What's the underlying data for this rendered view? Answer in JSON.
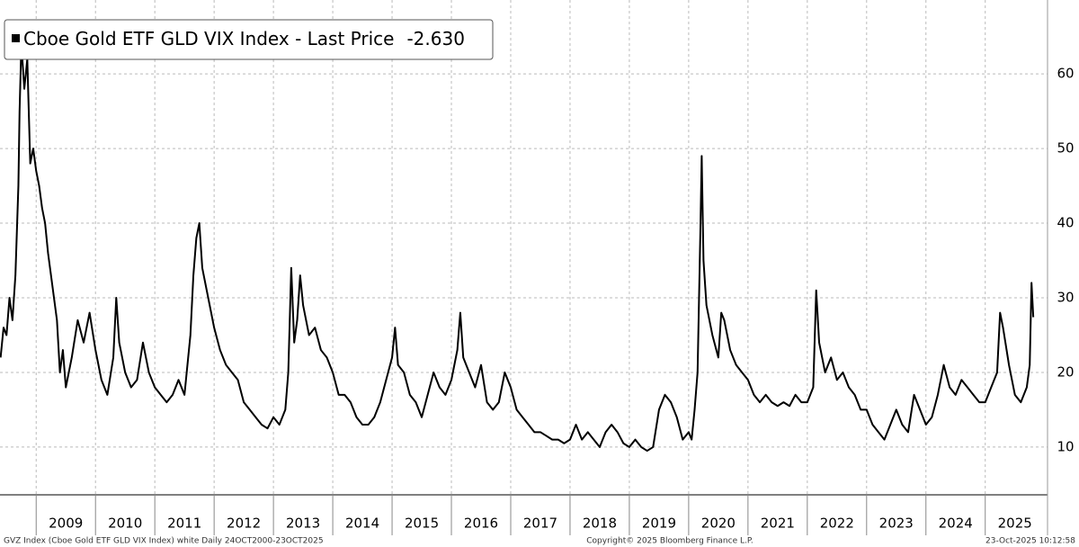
{
  "chart_data": {
    "type": "line",
    "legend": {
      "name_prefix_square": true
    },
    "last_change": {
      "value": -2.63,
      "label": "-2.630"
    },
    "footer": {
      "left": "GVZ Index (Cboe Gold ETF GLD VIX Index) white Daily 24OCT2000-23OCT2025",
      "center": "Copyright© 2025 Bloomberg Finance L.P.",
      "right": "23-Oct-2025 10:12:58"
    },
    "xlim": [
      2008.39,
      2026.05
    ],
    "xticks": [
      2009,
      2010,
      2011,
      2012,
      2013,
      2014,
      2015,
      2016,
      2017,
      2018,
      2019,
      2020,
      2021,
      2022,
      2023,
      2024,
      2025
    ],
    "ylim": [
      3.6,
      69.9
    ],
    "yticks": [
      10,
      20,
      30,
      40,
      50,
      60
    ],
    "grid": true,
    "x": [
      2008.4,
      2008.45,
      2008.5,
      2008.55,
      2008.6,
      2008.65,
      2008.7,
      2008.72,
      2008.75,
      2008.8,
      2008.85,
      2008.9,
      2008.95,
      2009.0,
      2009.05,
      2009.1,
      2009.15,
      2009.2,
      2009.25,
      2009.3,
      2009.35,
      2009.4,
      2009.45,
      2009.5,
      2009.6,
      2009.7,
      2009.8,
      2009.9,
      2010.0,
      2010.1,
      2010.2,
      2010.3,
      2010.35,
      2010.4,
      2010.5,
      2010.6,
      2010.7,
      2010.8,
      2010.9,
      2011.0,
      2011.1,
      2011.2,
      2011.3,
      2011.4,
      2011.5,
      2011.6,
      2011.65,
      2011.7,
      2011.75,
      2011.8,
      2011.9,
      2012.0,
      2012.1,
      2012.2,
      2012.3,
      2012.4,
      2012.5,
      2012.6,
      2012.7,
      2012.8,
      2012.9,
      2013.0,
      2013.1,
      2013.2,
      2013.25,
      2013.3,
      2013.35,
      2013.4,
      2013.45,
      2013.5,
      2013.6,
      2013.7,
      2013.8,
      2013.9,
      2014.0,
      2014.1,
      2014.2,
      2014.3,
      2014.4,
      2014.5,
      2014.6,
      2014.7,
      2014.8,
      2014.9,
      2015.0,
      2015.05,
      2015.1,
      2015.2,
      2015.3,
      2015.4,
      2015.5,
      2015.6,
      2015.7,
      2015.8,
      2015.9,
      2016.0,
      2016.1,
      2016.15,
      2016.2,
      2016.3,
      2016.4,
      2016.5,
      2016.6,
      2016.7,
      2016.8,
      2016.9,
      2017.0,
      2017.1,
      2017.2,
      2017.3,
      2017.4,
      2017.5,
      2017.6,
      2017.7,
      2017.8,
      2017.9,
      2018.0,
      2018.1,
      2018.2,
      2018.3,
      2018.4,
      2018.5,
      2018.6,
      2018.7,
      2018.8,
      2018.9,
      2019.0,
      2019.1,
      2019.2,
      2019.3,
      2019.4,
      2019.5,
      2019.6,
      2019.7,
      2019.8,
      2019.9,
      2020.0,
      2020.05,
      2020.1,
      2020.15,
      2020.2,
      2020.22,
      2020.25,
      2020.3,
      2020.4,
      2020.5,
      2020.55,
      2020.6,
      2020.7,
      2020.8,
      2020.9,
      2021.0,
      2021.1,
      2021.2,
      2021.3,
      2021.4,
      2021.5,
      2021.6,
      2021.7,
      2021.8,
      2021.9,
      2022.0,
      2022.1,
      2022.15,
      2022.2,
      2022.3,
      2022.4,
      2022.5,
      2022.6,
      2022.7,
      2022.8,
      2022.9,
      2023.0,
      2023.1,
      2023.2,
      2023.3,
      2023.4,
      2023.5,
      2023.6,
      2023.7,
      2023.8,
      2023.9,
      2024.0,
      2024.1,
      2024.2,
      2024.3,
      2024.4,
      2024.5,
      2024.6,
      2024.7,
      2024.8,
      2024.9,
      2025.0,
      2025.1,
      2025.2,
      2025.25,
      2025.3,
      2025.4,
      2025.5,
      2025.6,
      2025.7,
      2025.75,
      2025.78,
      2025.81
    ],
    "series": [
      {
        "name": "Cboe Gold ETF GLD VIX Index - Last Price",
        "color": "#000000",
        "values": [
          22,
          26,
          25,
          30,
          27,
          33,
          45,
          55,
          64,
          58,
          62,
          48,
          50,
          47,
          45,
          42,
          40,
          36,
          33,
          30,
          27,
          20,
          23,
          18,
          22,
          27,
          24,
          28,
          23,
          19,
          17,
          22,
          30,
          24,
          20,
          18,
          19,
          24,
          20,
          18,
          17,
          16,
          17,
          19,
          17,
          25,
          33,
          38,
          40,
          34,
          30,
          26,
          23,
          21,
          20,
          19,
          16,
          15,
          14,
          13,
          12.5,
          14,
          13,
          15,
          20,
          34,
          24,
          27,
          33,
          29,
          25,
          26,
          23,
          22,
          20,
          17,
          17,
          16,
          14,
          13,
          13,
          14,
          16,
          19,
          22,
          26,
          21,
          20,
          17,
          16,
          14,
          17,
          20,
          18,
          17,
          19,
          23,
          28,
          22,
          20,
          18,
          21,
          16,
          15,
          16,
          20,
          18,
          15,
          14,
          13,
          12,
          12,
          11.5,
          11,
          11,
          10.5,
          11,
          13,
          11,
          12,
          11,
          10,
          12,
          13,
          12,
          10.5,
          10,
          11,
          10,
          9.5,
          10,
          15,
          17,
          16,
          14,
          11,
          12,
          11,
          15,
          20,
          40,
          49,
          35,
          29,
          25,
          22,
          28,
          27,
          23,
          21,
          20,
          19,
          17,
          16,
          17,
          16,
          15.5,
          16,
          15.5,
          17,
          16,
          16,
          18,
          31,
          24,
          20,
          22,
          19,
          20,
          18,
          17,
          15,
          15,
          13,
          12,
          11,
          13,
          15,
          13,
          12,
          17,
          15,
          13,
          14,
          17,
          21,
          18,
          17,
          19,
          18,
          17,
          16,
          16,
          18,
          20,
          28,
          26,
          21,
          17,
          16,
          18,
          21,
          32,
          27.4
        ]
      }
    ]
  }
}
